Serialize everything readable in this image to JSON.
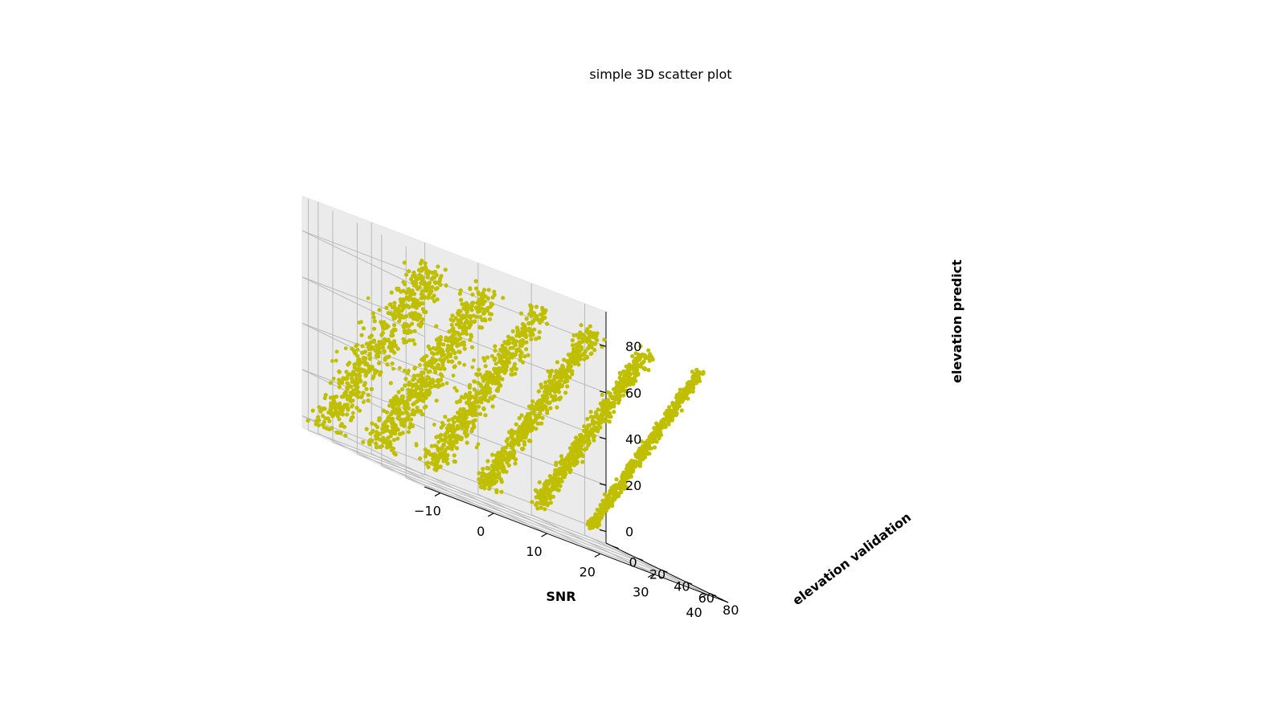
{
  "chart_data": {
    "type": "scatter",
    "projection": "3d",
    "title": "simple 3D scatter plot",
    "xlabel": "SNR",
    "ylabel": "elevation validation",
    "zlabel": "elevation predict",
    "xlim": [
      -13,
      44
    ],
    "ylim": [
      -5,
      95
    ],
    "zlim": [
      -5,
      95
    ],
    "xticks": [
      -10,
      0,
      10,
      20,
      30,
      40
    ],
    "xtick_labels": [
      "−10",
      "0",
      "10",
      "20",
      "30",
      "40"
    ],
    "yticks": [
      0,
      20,
      40,
      60,
      80
    ],
    "ytick_labels": [
      "0",
      "20",
      "40",
      "60",
      "80"
    ],
    "zticks": [
      0,
      20,
      40,
      60,
      80
    ],
    "ztick_labels": [
      "0",
      "20",
      "40",
      "60",
      "80"
    ],
    "grid": true,
    "marker_color": "#bfbf00",
    "series": [
      {
        "snr": -10,
        "elevation_range": [
          0,
          90
        ]
      },
      {
        "snr": 0,
        "elevation_range": [
          0,
          90
        ]
      },
      {
        "snr": 10,
        "elevation_range": [
          0,
          90
        ]
      },
      {
        "snr": 20,
        "elevation_range": [
          0,
          90
        ]
      },
      {
        "snr": 30,
        "elevation_range": [
          0,
          90
        ]
      },
      {
        "snr": 40,
        "elevation_range": [
          0,
          90
        ]
      }
    ]
  }
}
